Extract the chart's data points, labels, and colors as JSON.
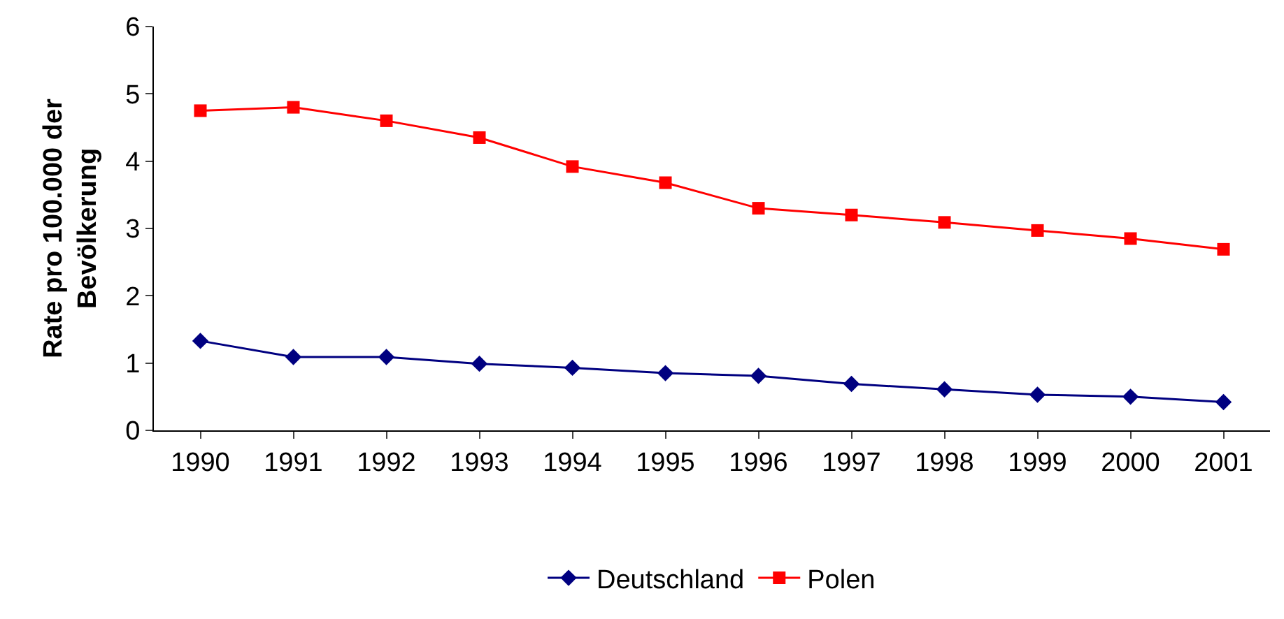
{
  "chart_data": {
    "type": "line",
    "ylabel": "Rate pro 100.000 der\nBevölkerung",
    "categories": [
      "1990",
      "1991",
      "1992",
      "1993",
      "1994",
      "1995",
      "1996",
      "1997",
      "1998",
      "1999",
      "2000",
      "2001"
    ],
    "series": [
      {
        "name": "Deutschland",
        "color": "#000080",
        "marker": "diamond",
        "values": [
          1.33,
          1.09,
          1.09,
          0.99,
          0.93,
          0.85,
          0.81,
          0.69,
          0.61,
          0.53,
          0.5,
          0.42
        ]
      },
      {
        "name": "Polen",
        "color": "#ff0000",
        "marker": "square",
        "values": [
          4.75,
          4.8,
          4.6,
          4.35,
          3.92,
          3.68,
          3.3,
          3.2,
          3.09,
          2.97,
          2.85,
          2.69
        ]
      }
    ],
    "ylim": [
      0,
      6
    ],
    "yticks": [
      0,
      1,
      2,
      3,
      4,
      5,
      6
    ],
    "grid": false,
    "legend": "bottom",
    "line_style": "solid"
  }
}
